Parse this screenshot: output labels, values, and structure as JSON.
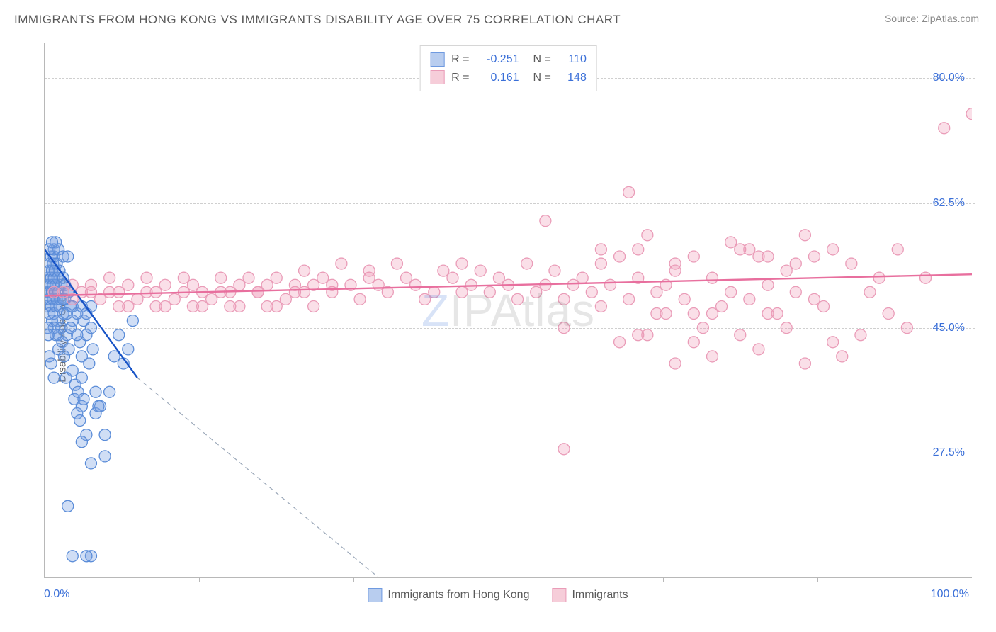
{
  "title": "IMMIGRANTS FROM HONG KONG VS IMMIGRANTS DISABILITY AGE OVER 75 CORRELATION CHART",
  "source_label": "Source:",
  "source_name": "ZipAtlas.com",
  "ylabel": "Disability Age Over 75",
  "watermark": {
    "first": "Z",
    "rest": "IPAtlas"
  },
  "chart": {
    "type": "scatter",
    "xlim": [
      0,
      100
    ],
    "ylim": [
      10,
      85
    ],
    "x_ticks_minor": [
      16.67,
      33.33,
      50,
      66.67,
      83.33
    ],
    "y_grid": [
      27.5,
      45.0,
      62.5,
      80.0
    ],
    "y_tick_labels": [
      "27.5%",
      "45.0%",
      "62.5%",
      "80.0%"
    ],
    "x_tick_left": "0.0%",
    "x_tick_right": "100.0%",
    "grid_color": "#cfcfcf",
    "axis_color": "#b8b8b8",
    "background": "#ffffff",
    "tick_label_color": "#3a6fd8"
  },
  "series": [
    {
      "id": "hk",
      "label": "Immigrants from Hong Kong",
      "marker_fill": "rgba(120,160,225,0.35)",
      "marker_stroke": "#5a8cd8",
      "marker_r": 8,
      "swatch_fill": "#b8cdef",
      "swatch_border": "#6f9ae0",
      "R": "-0.251",
      "N": "110",
      "trend": {
        "x1": 0,
        "y1": 56,
        "x2": 10,
        "y2": 38,
        "dash_to_x": 36,
        "dash_to_y": 10,
        "stroke": "#1753c6",
        "width": 2.4,
        "dash_stroke": "#9aa7b8"
      },
      "points": [
        [
          0.2,
          48
        ],
        [
          0.3,
          50
        ],
        [
          0.3,
          51
        ],
        [
          0.4,
          52
        ],
        [
          0.4,
          49
        ],
        [
          0.5,
          50
        ],
        [
          0.5,
          53
        ],
        [
          0.5,
          47
        ],
        [
          0.6,
          51
        ],
        [
          0.6,
          54
        ],
        [
          0.6,
          49
        ],
        [
          0.7,
          52
        ],
        [
          0.7,
          55
        ],
        [
          0.7,
          48
        ],
        [
          0.8,
          50
        ],
        [
          0.8,
          53
        ],
        [
          0.8,
          46
        ],
        [
          0.9,
          51
        ],
        [
          0.9,
          54
        ],
        [
          0.9,
          49
        ],
        [
          1.0,
          52
        ],
        [
          1.0,
          47
        ],
        [
          1.0,
          55
        ],
        [
          1.1,
          50
        ],
        [
          1.1,
          53
        ],
        [
          1.2,
          48
        ],
        [
          1.2,
          51
        ],
        [
          1.3,
          49
        ],
        [
          1.3,
          54
        ],
        [
          1.4,
          46
        ],
        [
          1.4,
          52
        ],
        [
          1.5,
          50
        ],
        [
          1.5,
          44
        ],
        [
          1.6,
          48
        ],
        [
          1.6,
          53
        ],
        [
          1.7,
          49
        ],
        [
          1.8,
          45
        ],
        [
          1.8,
          51
        ],
        [
          1.9,
          43
        ],
        [
          2.0,
          47
        ],
        [
          2.0,
          52
        ],
        [
          2.1,
          41
        ],
        [
          2.2,
          49
        ],
        [
          2.3,
          38
        ],
        [
          2.4,
          44
        ],
        [
          2.5,
          50
        ],
        [
          2.6,
          42
        ],
        [
          2.8,
          48
        ],
        [
          3.0,
          46
        ],
        [
          3.0,
          39
        ],
        [
          3.2,
          35
        ],
        [
          3.3,
          37
        ],
        [
          3.5,
          33
        ],
        [
          3.6,
          36
        ],
        [
          3.8,
          43
        ],
        [
          4.0,
          41
        ],
        [
          4.0,
          34
        ],
        [
          4.2,
          46
        ],
        [
          4.5,
          44
        ],
        [
          4.8,
          40
        ],
        [
          5.0,
          45
        ],
        [
          5.2,
          42
        ],
        [
          5.5,
          36
        ],
        [
          5.5,
          33
        ],
        [
          6.0,
          34
        ],
        [
          6.5,
          30
        ],
        [
          6.5,
          27
        ],
        [
          7.0,
          36
        ],
        [
          7.5,
          41
        ],
        [
          8.0,
          44
        ],
        [
          8.5,
          40
        ],
        [
          9.0,
          42
        ],
        [
          9.5,
          46
        ],
        [
          1.0,
          56
        ],
        [
          1.2,
          57
        ],
        [
          1.5,
          56
        ],
        [
          2.0,
          55
        ],
        [
          2.5,
          55
        ],
        [
          0.5,
          56
        ],
        [
          0.8,
          57
        ],
        [
          1.0,
          45
        ],
        [
          1.2,
          44
        ],
        [
          1.5,
          42
        ],
        [
          0.3,
          45
        ],
        [
          0.4,
          44
        ],
        [
          2.0,
          49
        ],
        [
          2.2,
          51
        ],
        [
          2.4,
          47
        ],
        [
          2.6,
          50
        ],
        [
          2.8,
          45
        ],
        [
          3.0,
          48
        ],
        [
          3.5,
          47
        ],
        [
          4.0,
          48
        ],
        [
          4.5,
          47
        ],
        [
          5.0,
          48
        ],
        [
          4.5,
          30
        ],
        [
          5.0,
          26
        ],
        [
          5.8,
          34
        ],
        [
          2.5,
          20
        ],
        [
          5.0,
          13
        ],
        [
          3.0,
          13
        ],
        [
          4.5,
          13
        ],
        [
          3.5,
          44
        ],
        [
          4.0,
          38
        ],
        [
          3.8,
          32
        ],
        [
          4.0,
          29
        ],
        [
          4.2,
          35
        ],
        [
          0.5,
          41
        ],
        [
          0.7,
          40
        ],
        [
          1.0,
          38
        ]
      ]
    },
    {
      "id": "imm",
      "label": "Immigrants",
      "marker_fill": "rgba(240,150,180,0.30)",
      "marker_stroke": "#ea9cb8",
      "marker_r": 8,
      "swatch_fill": "#f6cdd9",
      "swatch_border": "#ea9cb8",
      "R": "0.161",
      "N": "148",
      "trend": {
        "x1": 0,
        "y1": 49.5,
        "x2": 100,
        "y2": 52.5,
        "stroke": "#e86f9e",
        "width": 2.4
      },
      "points": [
        [
          1,
          50
        ],
        [
          2,
          50
        ],
        [
          3,
          49
        ],
        [
          4,
          50
        ],
        [
          5,
          50
        ],
        [
          6,
          49
        ],
        [
          7,
          50
        ],
        [
          8,
          50
        ],
        [
          9,
          51
        ],
        [
          10,
          49
        ],
        [
          11,
          50
        ],
        [
          12,
          50
        ],
        [
          13,
          51
        ],
        [
          14,
          49
        ],
        [
          15,
          50
        ],
        [
          16,
          51
        ],
        [
          17,
          50
        ],
        [
          18,
          49
        ],
        [
          19,
          50
        ],
        [
          20,
          50
        ],
        [
          21,
          51
        ],
        [
          22,
          52
        ],
        [
          23,
          50
        ],
        [
          24,
          51
        ],
        [
          25,
          52
        ],
        [
          26,
          49
        ],
        [
          27,
          50
        ],
        [
          28,
          50
        ],
        [
          28,
          53
        ],
        [
          29,
          51
        ],
        [
          30,
          52
        ],
        [
          31,
          50
        ],
        [
          32,
          54
        ],
        [
          33,
          51
        ],
        [
          34,
          49
        ],
        [
          35,
          52
        ],
        [
          35,
          53
        ],
        [
          36,
          51
        ],
        [
          37,
          50
        ],
        [
          38,
          54
        ],
        [
          39,
          52
        ],
        [
          40,
          51
        ],
        [
          41,
          49
        ],
        [
          42,
          50
        ],
        [
          43,
          53
        ],
        [
          44,
          52
        ],
        [
          45,
          50
        ],
        [
          45,
          54
        ],
        [
          46,
          51
        ],
        [
          47,
          53
        ],
        [
          48,
          50
        ],
        [
          49,
          52
        ],
        [
          50,
          51
        ],
        [
          51,
          49
        ],
        [
          52,
          54
        ],
        [
          53,
          50
        ],
        [
          54,
          51
        ],
        [
          55,
          53
        ],
        [
          56,
          49
        ],
        [
          56,
          45
        ],
        [
          57,
          51
        ],
        [
          58,
          52
        ],
        [
          59,
          50
        ],
        [
          60,
          54
        ],
        [
          60,
          48
        ],
        [
          61,
          51
        ],
        [
          62,
          55
        ],
        [
          62,
          43
        ],
        [
          63,
          49
        ],
        [
          64,
          52
        ],
        [
          65,
          44
        ],
        [
          65,
          58
        ],
        [
          66,
          50
        ],
        [
          67,
          51
        ],
        [
          67,
          47
        ],
        [
          68,
          54
        ],
        [
          68,
          40
        ],
        [
          69,
          49
        ],
        [
          70,
          55
        ],
        [
          70,
          43
        ],
        [
          71,
          45
        ],
        [
          72,
          52
        ],
        [
          72,
          41
        ],
        [
          73,
          48
        ],
        [
          74,
          50
        ],
        [
          75,
          56
        ],
        [
          75,
          44
        ],
        [
          76,
          49
        ],
        [
          77,
          55
        ],
        [
          77,
          42
        ],
        [
          78,
          51
        ],
        [
          79,
          47
        ],
        [
          80,
          53
        ],
        [
          80,
          45
        ],
        [
          81,
          54
        ],
        [
          82,
          58
        ],
        [
          82,
          40
        ],
        [
          83,
          49
        ],
        [
          84,
          48
        ],
        [
          85,
          56
        ],
        [
          85,
          43
        ],
        [
          86,
          41
        ],
        [
          87,
          54
        ],
        [
          88,
          44
        ],
        [
          89,
          50
        ],
        [
          90,
          52
        ],
        [
          91,
          47
        ],
        [
          92,
          56
        ],
        [
          93,
          45
        ],
        [
          95,
          52
        ],
        [
          97,
          73
        ],
        [
          100,
          75
        ],
        [
          63,
          64
        ],
        [
          54,
          60
        ],
        [
          56,
          28
        ],
        [
          78,
          55
        ],
        [
          83,
          55
        ],
        [
          81,
          50
        ],
        [
          68,
          53
        ],
        [
          74,
          57
        ],
        [
          76,
          56
        ],
        [
          64,
          56
        ],
        [
          60,
          56
        ],
        [
          64,
          44
        ],
        [
          66,
          47
        ],
        [
          70,
          47
        ],
        [
          72,
          47
        ],
        [
          78,
          47
        ],
        [
          8,
          48
        ],
        [
          12,
          48
        ],
        [
          16,
          48
        ],
        [
          20,
          48
        ],
        [
          24,
          48
        ],
        [
          3,
          51
        ],
        [
          5,
          51
        ],
        [
          7,
          52
        ],
        [
          9,
          48
        ],
        [
          11,
          52
        ],
        [
          13,
          48
        ],
        [
          15,
          52
        ],
        [
          17,
          48
        ],
        [
          19,
          52
        ],
        [
          21,
          48
        ],
        [
          23,
          50
        ],
        [
          25,
          48
        ],
        [
          27,
          51
        ],
        [
          29,
          48
        ],
        [
          31,
          51
        ]
      ]
    }
  ],
  "legend_top": {
    "R_label": "R =",
    "N_label": "N ="
  }
}
